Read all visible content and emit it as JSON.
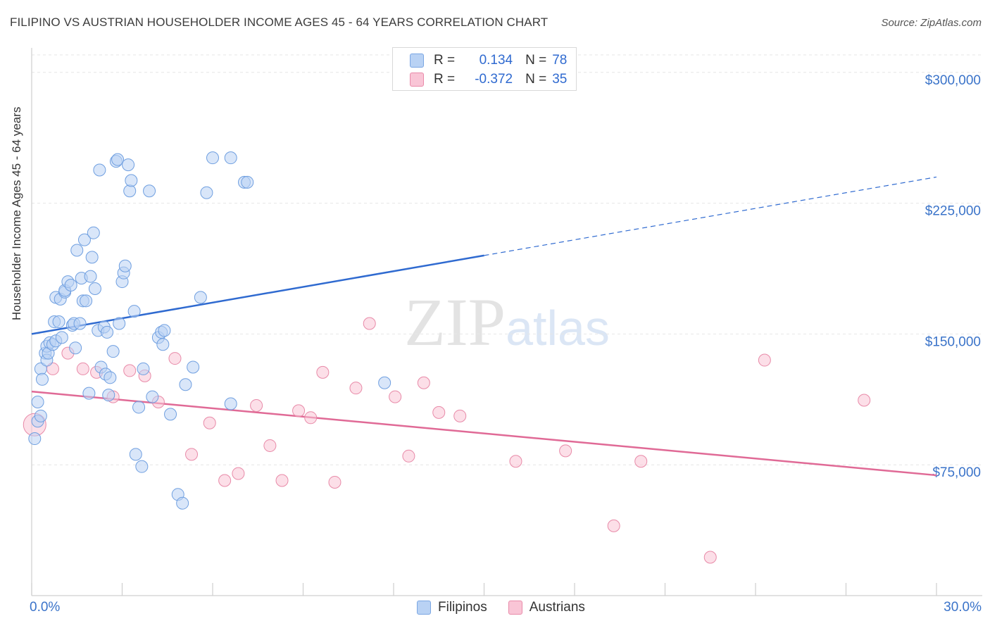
{
  "header": {
    "title": "FILIPINO VS AUSTRIAN HOUSEHOLDER INCOME AGES 45 - 64 YEARS CORRELATION CHART",
    "source": "Source: ZipAtlas.com"
  },
  "watermark": "ZIPatlas",
  "legend": {
    "rows": [
      {
        "r_label": "R =",
        "r_value": "0.134",
        "n_label": "N =",
        "n_value": "78"
      },
      {
        "r_label": "R =",
        "r_value": "-0.372",
        "n_label": "N =",
        "n_value": "35"
      }
    ]
  },
  "bottom_legend": {
    "filipinos": "Filipinos",
    "austrians": "Austrians"
  },
  "colors": {
    "blue_fill": "#b9d2f4",
    "blue_stroke": "#6f9fe0",
    "blue_line": "#2f6ad0",
    "pink_fill": "#f9c5d6",
    "pink_stroke": "#e88aa8",
    "pink_line": "#e06a96",
    "grid": "#e6e6e6",
    "axis_label": "#3a73c9"
  },
  "chart_data": {
    "type": "scatter",
    "title": "FILIPINO VS AUSTRIAN HOUSEHOLDER INCOME AGES 45 - 64 YEARS CORRELATION CHART",
    "xlabel": "",
    "ylabel": "Householder Income Ages 45 - 64 years",
    "xlim": [
      0,
      30
    ],
    "ylim": [
      0,
      310000
    ],
    "x_tick_labels": [
      "0.0%",
      "30.0%"
    ],
    "y_ticks": [
      75000,
      150000,
      225000,
      300000
    ],
    "y_tick_labels": [
      "$75,000",
      "$150,000",
      "$225,000",
      "$300,000"
    ],
    "grid": true,
    "series": [
      {
        "name": "Filipinos",
        "points": [
          [
            0.1,
            90000
          ],
          [
            0.2,
            100000
          ],
          [
            0.2,
            111000
          ],
          [
            0.3,
            103000
          ],
          [
            0.3,
            130000
          ],
          [
            0.35,
            124000
          ],
          [
            0.45,
            139000
          ],
          [
            0.5,
            135000
          ],
          [
            0.5,
            143000
          ],
          [
            0.55,
            139000
          ],
          [
            0.6,
            145000
          ],
          [
            0.7,
            144000
          ],
          [
            0.75,
            157000
          ],
          [
            0.8,
            146000
          ],
          [
            0.8,
            171000
          ],
          [
            0.9,
            157000
          ],
          [
            0.95,
            170000
          ],
          [
            1.0,
            148000
          ],
          [
            1.1,
            174000
          ],
          [
            1.1,
            175000
          ],
          [
            1.2,
            180000
          ],
          [
            1.3,
            178000
          ],
          [
            1.35,
            155000
          ],
          [
            1.4,
            156000
          ],
          [
            1.45,
            142000
          ],
          [
            1.5,
            198000
          ],
          [
            1.6,
            156000
          ],
          [
            1.65,
            182000
          ],
          [
            1.7,
            169000
          ],
          [
            1.75,
            204000
          ],
          [
            1.8,
            169000
          ],
          [
            1.9,
            116000
          ],
          [
            1.95,
            183000
          ],
          [
            2.0,
            194000
          ],
          [
            2.05,
            208000
          ],
          [
            2.1,
            176000
          ],
          [
            2.2,
            152000
          ],
          [
            2.25,
            244000
          ],
          [
            2.3,
            131000
          ],
          [
            2.4,
            154000
          ],
          [
            2.45,
            127000
          ],
          [
            2.5,
            151000
          ],
          [
            2.55,
            115000
          ],
          [
            2.6,
            125000
          ],
          [
            2.7,
            140000
          ],
          [
            2.8,
            249000
          ],
          [
            2.85,
            250000
          ],
          [
            2.9,
            156000
          ],
          [
            3.0,
            180000
          ],
          [
            3.05,
            185000
          ],
          [
            3.1,
            189000
          ],
          [
            3.2,
            247000
          ],
          [
            3.25,
            232000
          ],
          [
            3.3,
            238000
          ],
          [
            3.4,
            163000
          ],
          [
            3.45,
            81000
          ],
          [
            3.55,
            108000
          ],
          [
            3.65,
            74000
          ],
          [
            3.7,
            130000
          ],
          [
            3.9,
            232000
          ],
          [
            4.0,
            114000
          ],
          [
            4.2,
            148000
          ],
          [
            4.3,
            151000
          ],
          [
            4.35,
            144000
          ],
          [
            4.4,
            152000
          ],
          [
            4.6,
            104000
          ],
          [
            4.85,
            58000
          ],
          [
            5.0,
            53000
          ],
          [
            5.1,
            121000
          ],
          [
            5.35,
            131000
          ],
          [
            5.6,
            171000
          ],
          [
            5.8,
            231000
          ],
          [
            6.0,
            251000
          ],
          [
            6.6,
            251000
          ],
          [
            6.6,
            110000
          ],
          [
            7.05,
            237000
          ],
          [
            7.15,
            237000
          ],
          [
            11.7,
            122000
          ]
        ]
      },
      {
        "name": "Austrians",
        "points": [
          [
            0.1,
            98000
          ],
          [
            0.7,
            130000
          ],
          [
            1.2,
            139000
          ],
          [
            1.7,
            130000
          ],
          [
            2.15,
            128000
          ],
          [
            2.7,
            114000
          ],
          [
            3.25,
            129000
          ],
          [
            3.75,
            126000
          ],
          [
            4.2,
            111000
          ],
          [
            4.75,
            136000
          ],
          [
            5.3,
            81000
          ],
          [
            5.9,
            99000
          ],
          [
            6.4,
            66000
          ],
          [
            6.85,
            70000
          ],
          [
            7.45,
            109000
          ],
          [
            7.9,
            86000
          ],
          [
            8.3,
            66000
          ],
          [
            8.85,
            106000
          ],
          [
            9.25,
            102000
          ],
          [
            9.65,
            128000
          ],
          [
            10.05,
            65000
          ],
          [
            10.75,
            119000
          ],
          [
            11.2,
            156000
          ],
          [
            12.05,
            114000
          ],
          [
            12.5,
            80000
          ],
          [
            13.0,
            122000
          ],
          [
            13.5,
            105000
          ],
          [
            14.2,
            103000
          ],
          [
            16.05,
            77000
          ],
          [
            17.7,
            83000
          ],
          [
            19.3,
            40000
          ],
          [
            20.2,
            77000
          ],
          [
            22.5,
            22000
          ],
          [
            24.3,
            135000
          ],
          [
            27.6,
            112000
          ]
        ]
      }
    ],
    "trend_lines": [
      {
        "series": "Filipinos",
        "x_start": 0,
        "y_start": 150000,
        "x_solid_end": 15,
        "y_solid_end": 195000,
        "x_end": 30,
        "y_end": 240000
      },
      {
        "series": "Austrians",
        "x_start": 0,
        "y_start": 117000,
        "x_end": 30,
        "y_end": 69000
      }
    ]
  }
}
